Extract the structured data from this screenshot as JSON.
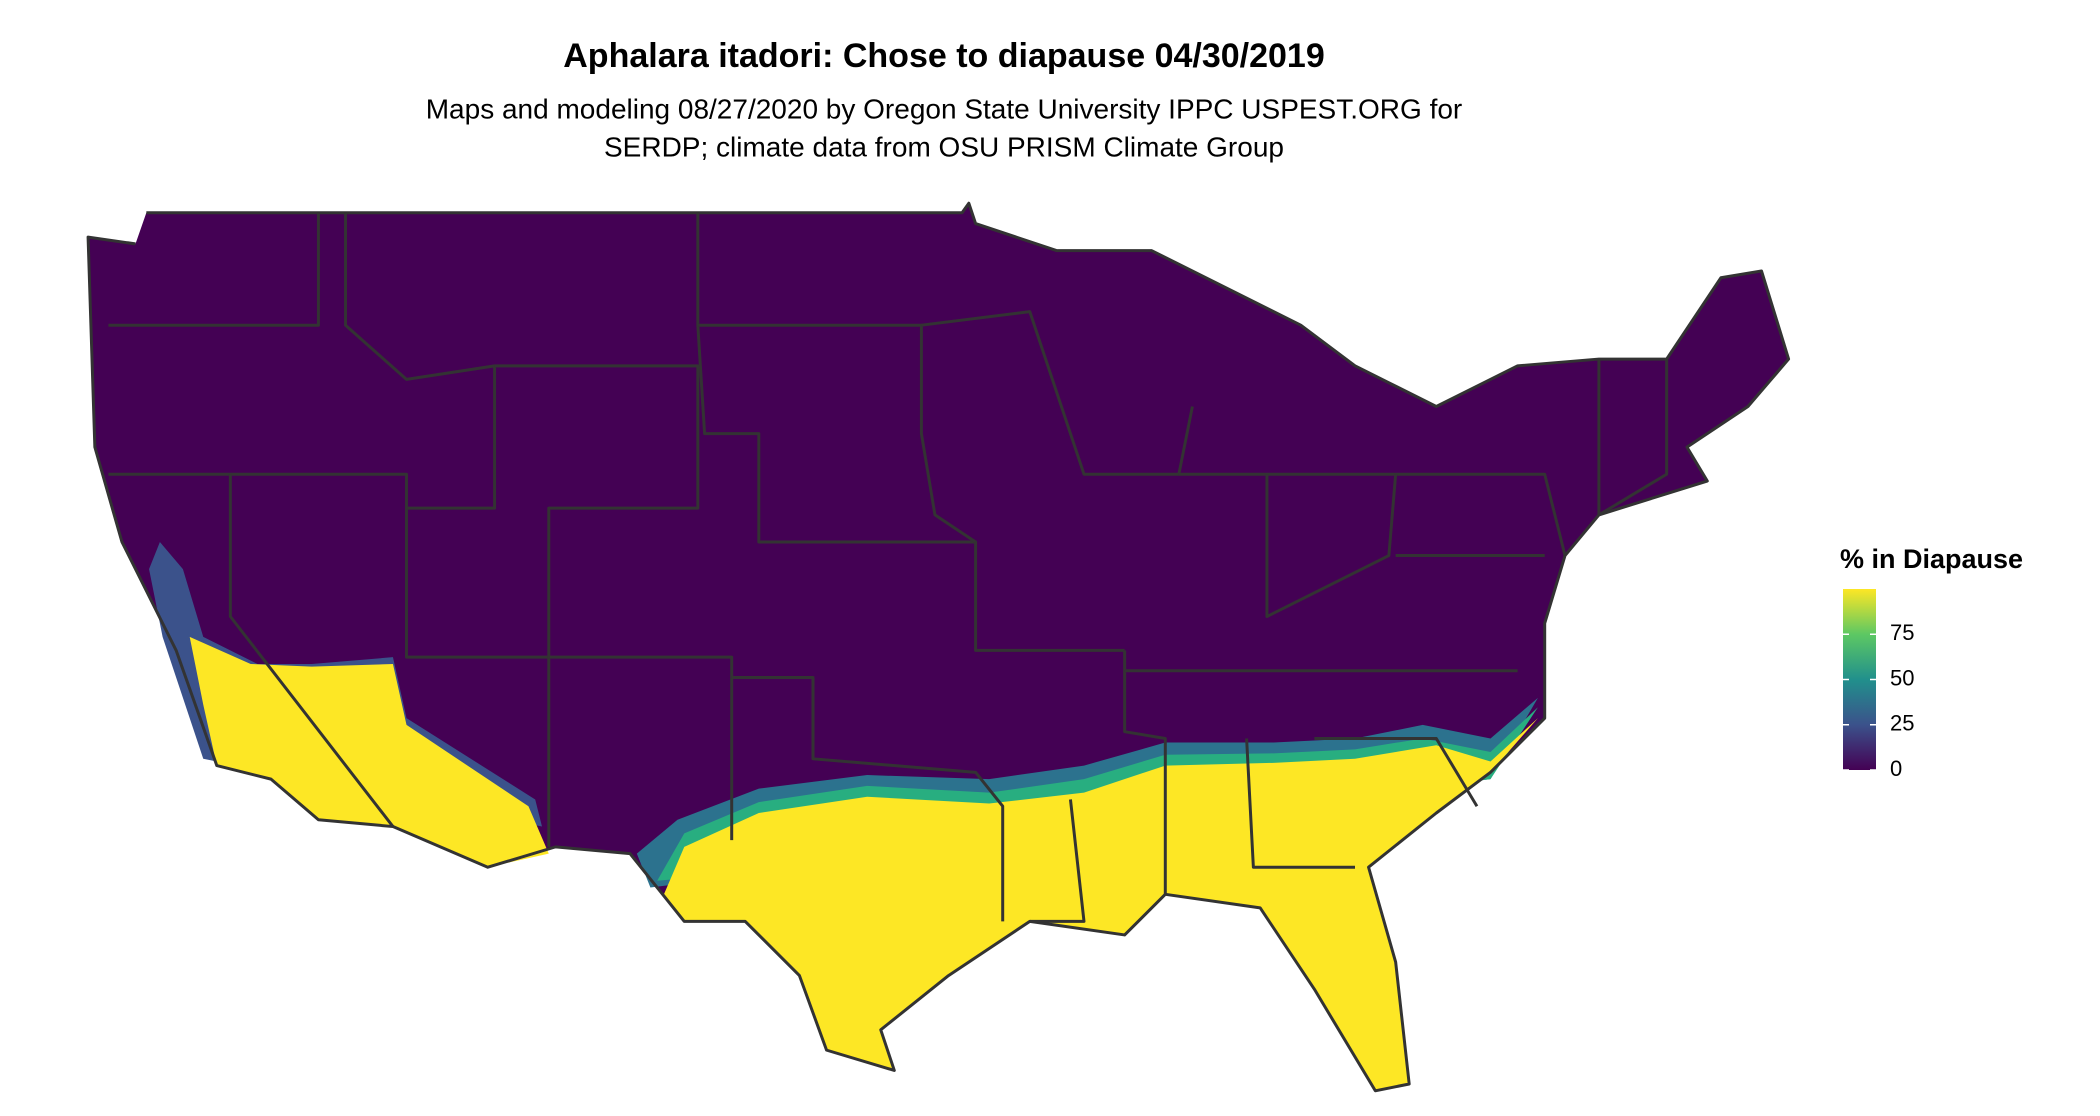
{
  "title": "Aphalara itadori: Chose to diapause 04/30/2019",
  "subtitle": [
    "Maps and modeling 08/27/2020 by Oregon State University IPPC USPEST.ORG for",
    "SERDP; climate data from OSU PRISM Climate Group"
  ],
  "legend": {
    "title": "% in Diapause",
    "lim": [
      0,
      100
    ],
    "ticks": [
      0,
      25,
      50,
      75
    ],
    "colors": [
      "#440154",
      "#3b528b",
      "#21908c",
      "#5dc863",
      "#fde725"
    ]
  }
}
